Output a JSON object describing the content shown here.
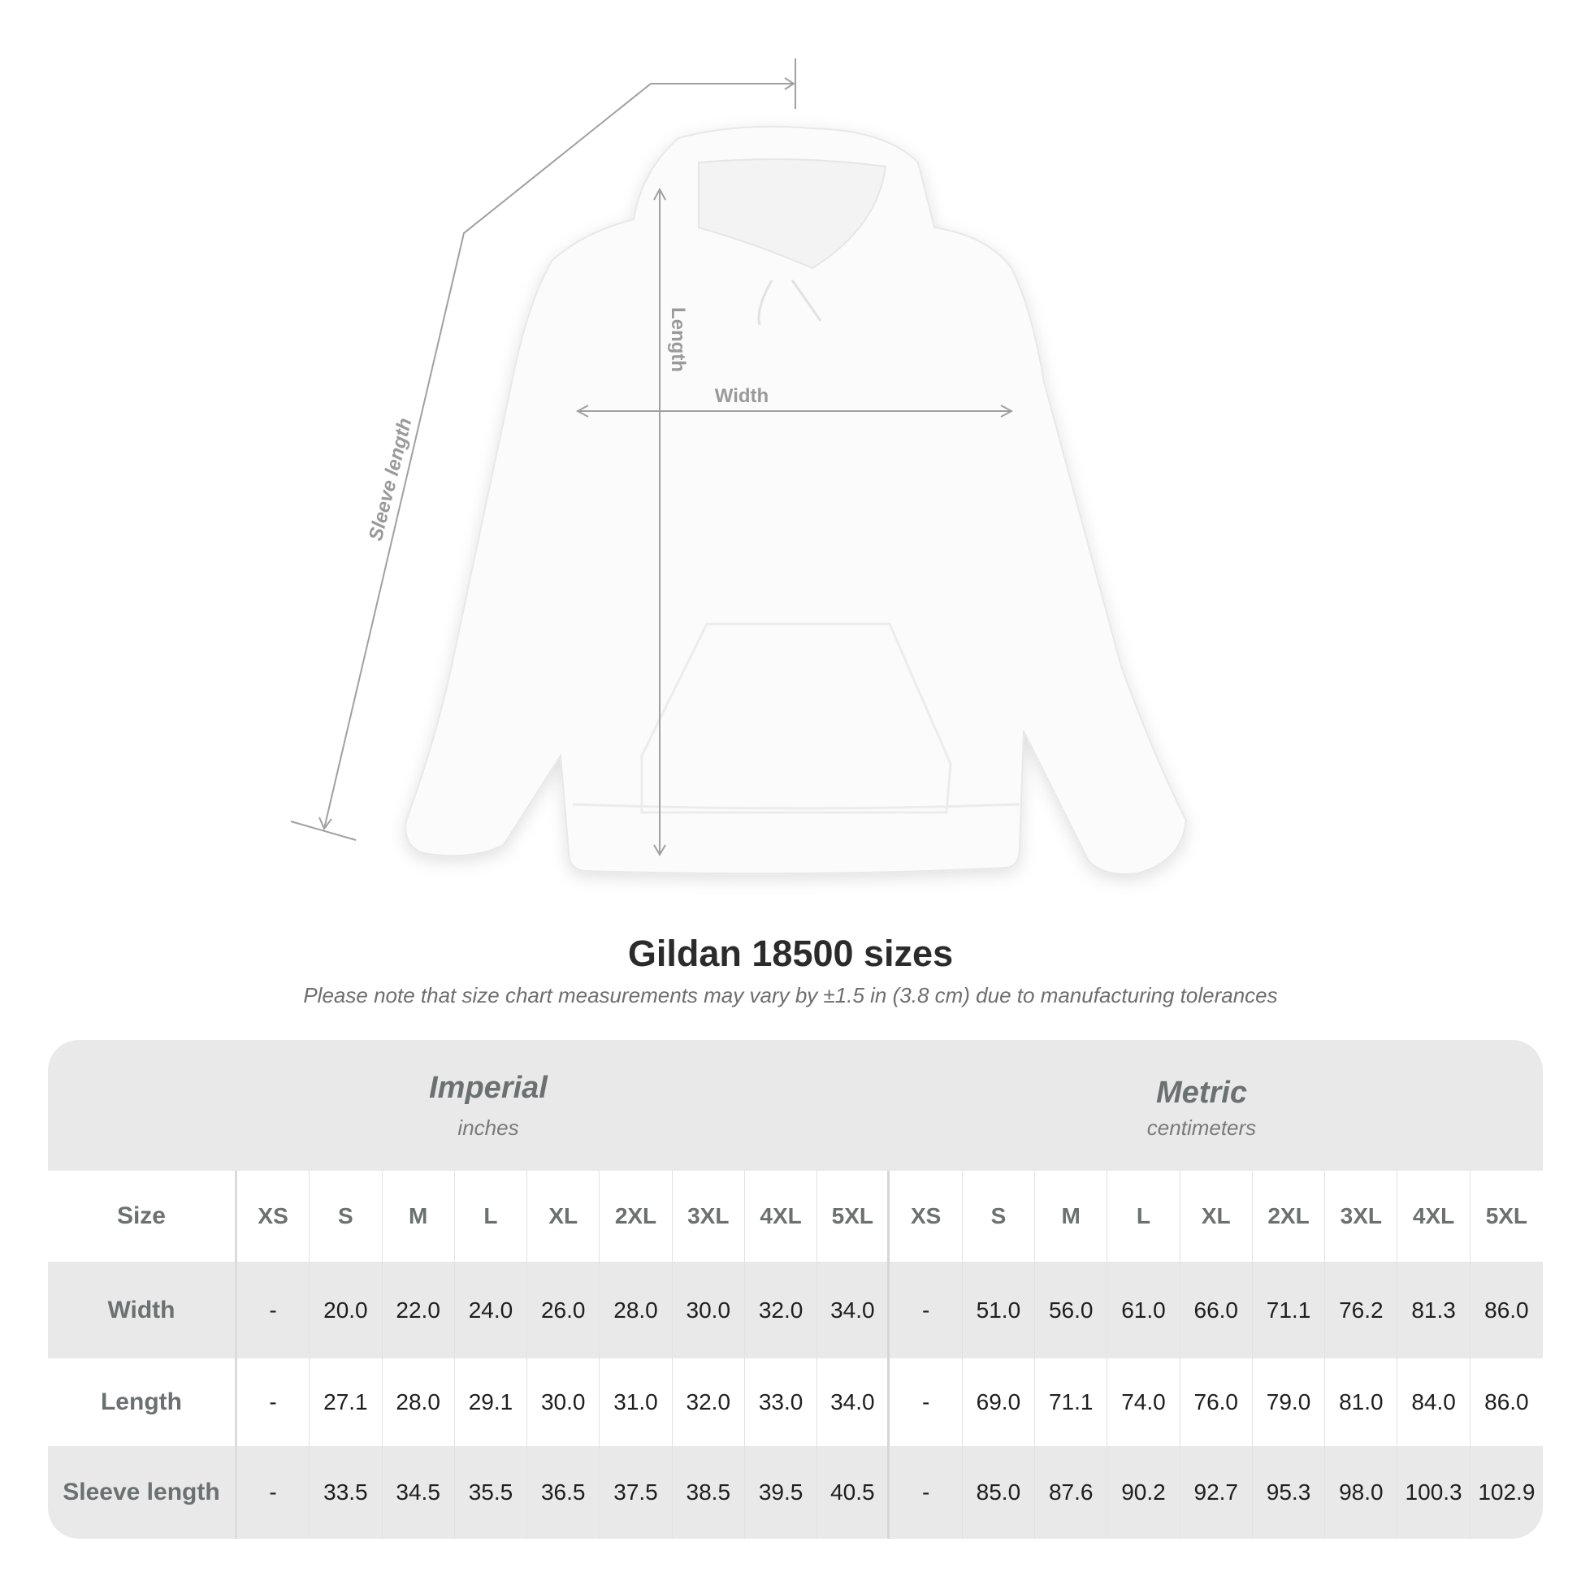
{
  "diagram": {
    "labels": {
      "length": "Length",
      "width": "Width",
      "sleeve": "Sleeve length"
    },
    "colors": {
      "lines": "#a0a0a0",
      "garment": "#fbfbfb"
    }
  },
  "title": "Gildan 18500 sizes",
  "subtitle": "Please note that size chart measurements may vary by ±1.5 in (3.8 cm) due to manufacturing tolerances",
  "table": {
    "imperial": {
      "name": "Imperial",
      "unit": "inches"
    },
    "metric": {
      "name": "Metric",
      "unit": "centimeters"
    },
    "size_label": "Size",
    "sizes": [
      "XS",
      "S",
      "M",
      "L",
      "XL",
      "2XL",
      "3XL",
      "4XL",
      "5XL",
      "XS",
      "S",
      "M",
      "L",
      "XL",
      "2XL",
      "3XL",
      "4XL",
      "5XL"
    ],
    "rows": [
      {
        "label": "Width",
        "values": [
          "-",
          "20.0",
          "22.0",
          "24.0",
          "26.0",
          "28.0",
          "30.0",
          "32.0",
          "34.0",
          "-",
          "51.0",
          "56.0",
          "61.0",
          "66.0",
          "71.1",
          "76.2",
          "81.3",
          "86.0"
        ]
      },
      {
        "label": "Length",
        "values": [
          "-",
          "27.1",
          "28.0",
          "29.1",
          "30.0",
          "31.0",
          "32.0",
          "33.0",
          "34.0",
          "-",
          "69.0",
          "71.1",
          "74.0",
          "76.0",
          "79.0",
          "81.0",
          "84.0",
          "86.0"
        ]
      },
      {
        "label": "Sleeve length",
        "values": [
          "-",
          "33.5",
          "34.5",
          "35.5",
          "36.5",
          "37.5",
          "38.5",
          "39.5",
          "40.5",
          "-",
          "85.0",
          "87.6",
          "90.2",
          "92.7",
          "95.3",
          "98.0",
          "100.3",
          "102.9"
        ]
      }
    ]
  }
}
